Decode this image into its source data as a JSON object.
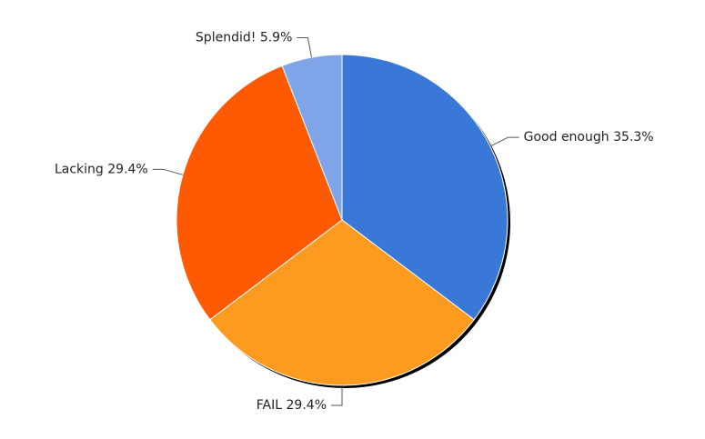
{
  "chart_data": {
    "type": "pie",
    "categories": [
      "Good enough",
      "FAIL",
      "Lacking",
      "Splendid!"
    ],
    "values": [
      35.3,
      29.4,
      29.4,
      5.9
    ],
    "value_labels": [
      "35.3%",
      "29.4%",
      "29.4%",
      "5.9%"
    ],
    "colors": [
      "#3a78d8",
      "#fd9a20",
      "#fe5a04",
      "#7fa5e8"
    ]
  }
}
